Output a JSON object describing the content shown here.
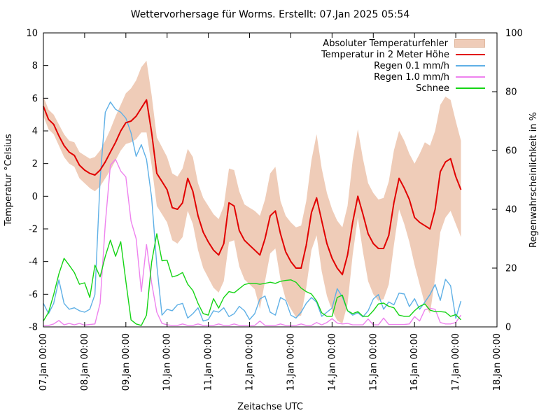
{
  "title": "Wettervorhersage für Worms. Erstellt: 07.Jan 2025 05:54",
  "axes": {
    "x_label": "Zeitachse UTC",
    "y_left_label": "Temperatur °Celsius",
    "y_right_label": "Regenwahrscheinlichkeit in %"
  },
  "chart_data": {
    "type": "line",
    "x_start": "07.Jan 00:00",
    "x_step_hours": 3,
    "x_tick_labels": [
      "07.Jan 00:00",
      "08.Jan 00:00",
      "09.Jan 00:00",
      "10.Jan 00:00",
      "11.Jan 00:00",
      "12.Jan 00:00",
      "13.Jan 00:00",
      "14.Jan 00:00",
      "15.Jan 00:00",
      "16.Jan 00:00",
      "17.Jan 00:00",
      "18.Jan 00:00"
    ],
    "temp_axis": {
      "min": -8,
      "max": 10,
      "ticks": [
        10,
        8,
        6,
        4,
        2,
        0,
        -2,
        -4,
        -6,
        -8
      ]
    },
    "pct_axis": {
      "min": 0,
      "max": 100,
      "ticks": [
        100,
        80,
        60,
        40,
        20,
        0
      ]
    },
    "grid": false,
    "legend_position": "top-right-inside",
    "band": {
      "name": "Absoluter Temperaturfehler",
      "color": "#efccb8",
      "axis": "temp",
      "upper": [
        6.1,
        5.3,
        5.0,
        4.4,
        3.8,
        3.4,
        3.3,
        2.7,
        2.5,
        2.3,
        2.4,
        2.8,
        3.4,
        4.1,
        4.9,
        5.6,
        6.3,
        6.6,
        7.1,
        7.9,
        8.3,
        6.2,
        3.6,
        3.0,
        2.4,
        1.4,
        1.2,
        1.7,
        2.9,
        2.4,
        0.8,
        -0.1,
        -0.6,
        -1.1,
        -1.4,
        -0.6,
        1.7,
        1.6,
        0.3,
        -0.5,
        -0.7,
        -0.9,
        -1.2,
        -0.2,
        1.4,
        1.8,
        -0.3,
        -1.2,
        -1.6,
        -1.9,
        -1.8,
        -0.3,
        2.2,
        3.8,
        1.7,
        0.2,
        -0.8,
        -1.5,
        -1.9,
        -0.6,
        2.2,
        4.1,
        2.3,
        0.8,
        0.2,
        -0.2,
        -0.1,
        0.9,
        2.8,
        4.0,
        3.4,
        2.6,
        2.0,
        2.6,
        3.3,
        3.1,
        4.0,
        5.6,
        6.1,
        5.9,
        4.6,
        3.4
      ],
      "lower": [
        4.9,
        4.1,
        3.8,
        3.1,
        2.4,
        2.0,
        1.8,
        1.1,
        0.8,
        0.5,
        0.3,
        0.6,
        1.1,
        1.6,
        2.2,
        2.8,
        3.2,
        3.3,
        3.5,
        3.9,
        3.9,
        1.9,
        -0.6,
        -1.1,
        -1.6,
        -2.7,
        -2.9,
        -2.5,
        -0.9,
        -1.7,
        -3.3,
        -4.4,
        -5.0,
        -5.6,
        -5.9,
        -5.2,
        -2.8,
        -2.7,
        -4.3,
        -5.1,
        -5.4,
        -5.7,
        -6.9,
        -5.2,
        -3.5,
        -3.2,
        -5.1,
        -6.3,
        -6.9,
        -7.4,
        -7.3,
        -5.6,
        -3.3,
        -2.4,
        -4.6,
        -6.1,
        -7.0,
        -7.6,
        -7.8,
        -6.6,
        -3.6,
        -1.3,
        -3.4,
        -5.2,
        -6.0,
        -6.4,
        -6.3,
        -5.4,
        -3.0,
        -0.8,
        -1.7,
        -2.8,
        -4.2,
        -5.4,
        -6.6,
        -7.2,
        -5.0,
        -2.2,
        -1.3,
        -0.9,
        -1.7,
        -2.5
      ]
    },
    "series": [
      {
        "name": "Temperatur in 2 Meter Höhe",
        "color": "#e10000",
        "axis": "temp",
        "values": [
          5.5,
          4.7,
          4.4,
          3.7,
          3.1,
          2.7,
          2.5,
          1.9,
          1.6,
          1.4,
          1.3,
          1.6,
          2.1,
          2.7,
          3.3,
          4.0,
          4.5,
          4.6,
          4.9,
          5.4,
          5.9,
          3.9,
          1.4,
          0.9,
          0.4,
          -0.7,
          -0.8,
          -0.4,
          1.1,
          0.3,
          -1.2,
          -2.2,
          -2.8,
          -3.3,
          -3.6,
          -2.9,
          -0.4,
          -0.6,
          -2.1,
          -2.7,
          -3.0,
          -3.3,
          -3.6,
          -2.6,
          -1.2,
          -0.9,
          -2.3,
          -3.4,
          -4.0,
          -4.4,
          -4.4,
          -3.0,
          -1.0,
          -0.1,
          -1.5,
          -2.9,
          -3.8,
          -4.4,
          -4.8,
          -3.6,
          -1.6,
          0.0,
          -1.1,
          -2.3,
          -2.9,
          -3.2,
          -3.2,
          -2.4,
          -0.4,
          1.1,
          0.5,
          -0.2,
          -1.3,
          -1.6,
          -1.8,
          -2.0,
          -0.8,
          1.5,
          2.1,
          2.3,
          1.2,
          0.4
        ]
      },
      {
        "name": "Regen 0.1 mm/h",
        "color": "#5fb0e6",
        "axis": "pct",
        "values": [
          8,
          4.5,
          8,
          16,
          8,
          6,
          6.5,
          5.5,
          5,
          6,
          11,
          50,
          73,
          76.5,
          74,
          73,
          71,
          66,
          58,
          62,
          57,
          44,
          21,
          4,
          6,
          5.5,
          7.5,
          8,
          3,
          4.5,
          6.5,
          2,
          2.5,
          5.5,
          5,
          6.5,
          3.5,
          4.5,
          7,
          5.5,
          2.5,
          4.5,
          9.5,
          10.5,
          5,
          4,
          10,
          9,
          4,
          3,
          5,
          8,
          10,
          8.4,
          3.6,
          5,
          6.4,
          13,
          10.2,
          5.5,
          4,
          4.8,
          3.4,
          5.5,
          9.5,
          11,
          6,
          8.5,
          7.5,
          11.5,
          11.2,
          6.9,
          9.6,
          6,
          8.4,
          11,
          14.4,
          9,
          16.2,
          14,
          2.9,
          8.8
        ]
      },
      {
        "name": "Regen 1.0 mm/h",
        "color": "#ee82ee",
        "axis": "pct",
        "values": [
          0.5,
          0.5,
          1,
          2.2,
          0.7,
          1.2,
          0.7,
          1.2,
          0.6,
          0.8,
          1,
          8,
          35,
          55,
          57,
          53,
          51,
          36,
          30,
          12,
          28,
          15,
          5,
          1.2,
          0.7,
          0.5,
          0.5,
          1,
          0.5,
          0.5,
          1,
          0.5,
          0.5,
          0.5,
          1,
          0.5,
          0.5,
          1,
          0.5,
          0.5,
          0.5,
          0.5,
          2,
          0.5,
          0.5,
          0.5,
          1,
          0.5,
          0.5,
          0.5,
          1,
          0.5,
          0.5,
          1.5,
          0.7,
          1.5,
          2.8,
          1.3,
          1,
          1.2,
          0.7,
          0.7,
          0.7,
          2.7,
          0.7,
          0.7,
          3,
          0.8,
          0.8,
          0.8,
          0.8,
          1,
          3.5,
          2,
          5.8,
          6.3,
          6,
          1.5,
          1,
          1,
          1.5,
          4
        ]
      },
      {
        "name": "Schnee",
        "color": "#15d415",
        "axis": "pct",
        "values": [
          2,
          5,
          11,
          18,
          23.3,
          21,
          18.5,
          14.5,
          15,
          10,
          21,
          17,
          24,
          29.5,
          24,
          29,
          15.5,
          2.4,
          1,
          0.5,
          4,
          22,
          31.7,
          22.5,
          22.7,
          17,
          17.5,
          18.5,
          14.5,
          12.4,
          8,
          4.5,
          4,
          9.6,
          6.4,
          10,
          12,
          11.6,
          13,
          14.4,
          14.8,
          14.8,
          14.5,
          14.8,
          15.2,
          14.8,
          15.5,
          15.8,
          16,
          15.2,
          13.2,
          12,
          11.2,
          8.8,
          4.8,
          3.6,
          3.6,
          10,
          10.8,
          5.5,
          4.5,
          5.2,
          3.6,
          3.6,
          5.5,
          7.8,
          8.1,
          7,
          6.5,
          4,
          3.6,
          3.6,
          5.5,
          7,
          7.8,
          5.7,
          5.2,
          5.2,
          5,
          3.6,
          4.2,
          2.4
        ]
      }
    ]
  }
}
